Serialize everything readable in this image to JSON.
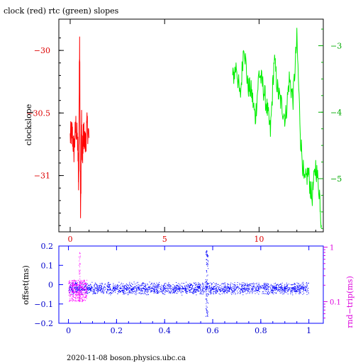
{
  "chart_data": [
    {
      "type": "line",
      "title": "clock (red) rtc (green) slopes",
      "ylabel": "clockslope",
      "xlim": [
        -0.6,
        13.4
      ],
      "ylim_left": [
        -31.45,
        -29.75
      ],
      "ylim_right": [
        -5.8,
        -2.6
      ],
      "x_ticks": [
        0,
        5,
        10
      ],
      "x_tick_labels": [
        "0",
        "5",
        "10"
      ],
      "y_left_ticks": [
        -30,
        -30.5,
        -31
      ],
      "y_left_tick_labels": [
        "−30",
        "−30.5",
        "−31"
      ],
      "y_right_ticks": [
        -3,
        -4,
        -5
      ],
      "y_right_tick_labels": [
        "−3",
        "−4",
        "−5"
      ],
      "series": [
        {
          "color": "#ff0000",
          "axis": "left",
          "x": [
            0.0,
            0.1,
            0.2,
            0.3,
            0.4,
            0.45,
            0.5,
            0.55,
            0.6,
            0.65,
            0.7,
            0.8,
            0.9,
            1.0
          ],
          "y": [
            -30.7,
            -30.65,
            -30.8,
            -30.6,
            -30.75,
            -31.05,
            -29.83,
            -31.35,
            -30.55,
            -30.9,
            -30.65,
            -30.75,
            -30.6,
            -30.7
          ]
        },
        {
          "color": "#00ee00",
          "axis": "right",
          "x": [
            8.6,
            8.8,
            9.0,
            9.2,
            9.4,
            9.6,
            9.8,
            10.0,
            10.2,
            10.4,
            10.6,
            10.8,
            11.0,
            11.2,
            11.4,
            11.6,
            11.8,
            12.0,
            12.2,
            12.4,
            12.6,
            12.8,
            13.0,
            13.2,
            13.3
          ],
          "y": [
            -3.5,
            -3.3,
            -3.8,
            -2.95,
            -3.6,
            -3.7,
            -4.1,
            -3.4,
            -3.6,
            -3.9,
            -4.3,
            -3.2,
            -3.7,
            -3.9,
            -4.1,
            -3.5,
            -3.8,
            -2.9,
            -4.4,
            -5.1,
            -4.9,
            -5.3,
            -4.8,
            -5.2,
            -5.7
          ]
        }
      ]
    },
    {
      "type": "scatter",
      "ylabel": "offset(ms)",
      "ylabel_right": "rnd−trip(ms)",
      "xlim": [
        -0.04,
        1.06
      ],
      "ylim_left": [
        -0.2,
        0.2
      ],
      "ylim_right": [
        0.04,
        1.05
      ],
      "right_log_scale": true,
      "x_ticks": [
        0,
        0.2,
        0.4,
        0.6,
        0.8,
        1
      ],
      "x_tick_labels": [
        "0",
        "0.2",
        "0.4",
        "0.6",
        "0.8",
        "1"
      ],
      "y_left_ticks": [
        0.2,
        0.1,
        0,
        -0.1,
        -0.2
      ],
      "y_left_tick_labels": [
        "0.2",
        "0.1",
        "0",
        "−0.1",
        "−0.2"
      ],
      "y_right_ticks": [
        1,
        0.1
      ],
      "y_right_tick_labels": [
        "1",
        "0.1"
      ],
      "series": [
        {
          "color": "#0000ff",
          "description": "offset points",
          "band_center": -0.02,
          "band_halfwidth": 0.025,
          "x_range": [
            0,
            1
          ],
          "spikes": [
            {
              "x": 0.575,
              "y_min": -0.17,
              "y_max": 0.18
            }
          ]
        },
        {
          "color": "#ff00ff",
          "description": "round-trip points",
          "x_range": [
            0,
            0.075
          ],
          "y_approx_ms": [
            0.1,
            0.25
          ],
          "spikes": [
            {
              "x": 0.045,
              "y_min": 0.1,
              "y_max": 0.8
            }
          ]
        }
      ]
    }
  ],
  "footer": "2020-11-08  boson.physics.ubc.ca"
}
